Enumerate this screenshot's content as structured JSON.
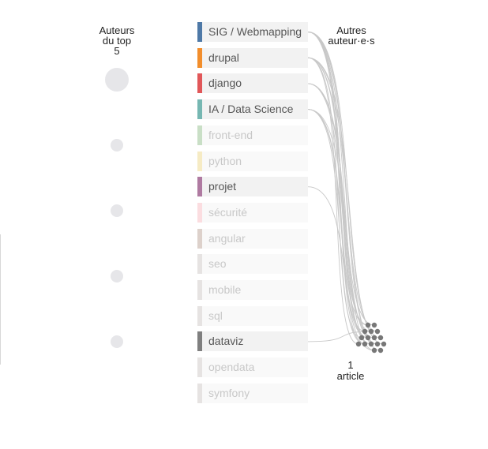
{
  "headers": {
    "left": [
      "Auteurs",
      "du top",
      "5"
    ],
    "right": [
      "Autres",
      "auteur·e·s"
    ]
  },
  "top_authors": [
    {
      "size": "large"
    },
    {
      "size": "small"
    },
    {
      "size": "small"
    },
    {
      "size": "small"
    },
    {
      "size": "small"
    }
  ],
  "tags": [
    {
      "label": "SIG / Webmapping",
      "color": "#4e79a7",
      "active": true
    },
    {
      "label": "drupal",
      "color": "#f28e2c",
      "active": true
    },
    {
      "label": "django",
      "color": "#e15759",
      "active": true
    },
    {
      "label": "IA / Data Science",
      "color": "#76b7b2",
      "active": true
    },
    {
      "label": "front-end",
      "color": "#59a14f",
      "active": false
    },
    {
      "label": "python",
      "color": "#edc949",
      "active": false
    },
    {
      "label": "projet",
      "color": "#af7aa1",
      "active": true
    },
    {
      "label": "sécurité",
      "color": "#ff9da7",
      "active": false
    },
    {
      "label": "angular",
      "color": "#9c755f",
      "active": false
    },
    {
      "label": "seo",
      "color": "#bab0ab",
      "active": false
    },
    {
      "label": "mobile",
      "color": "#bab0ab",
      "active": false
    },
    {
      "label": "sql",
      "color": "#bab0ab",
      "active": false
    },
    {
      "label": "dataviz",
      "color": "#7f7f7f",
      "active": true
    },
    {
      "label": "opendata",
      "color": "#bab0ab",
      "active": false
    },
    {
      "label": "symfony",
      "color": "#bab0ab",
      "active": false
    }
  ],
  "other_authors": {
    "dot_count": 16,
    "dot_color": "#777777",
    "link_color": "#c8c8c8",
    "link_counts_per_tag": [
      9,
      6,
      3,
      4,
      0,
      0,
      1,
      0,
      0,
      0,
      0,
      0,
      1,
      0,
      0
    ]
  },
  "legend": {
    "value": "1",
    "unit": "article"
  }
}
